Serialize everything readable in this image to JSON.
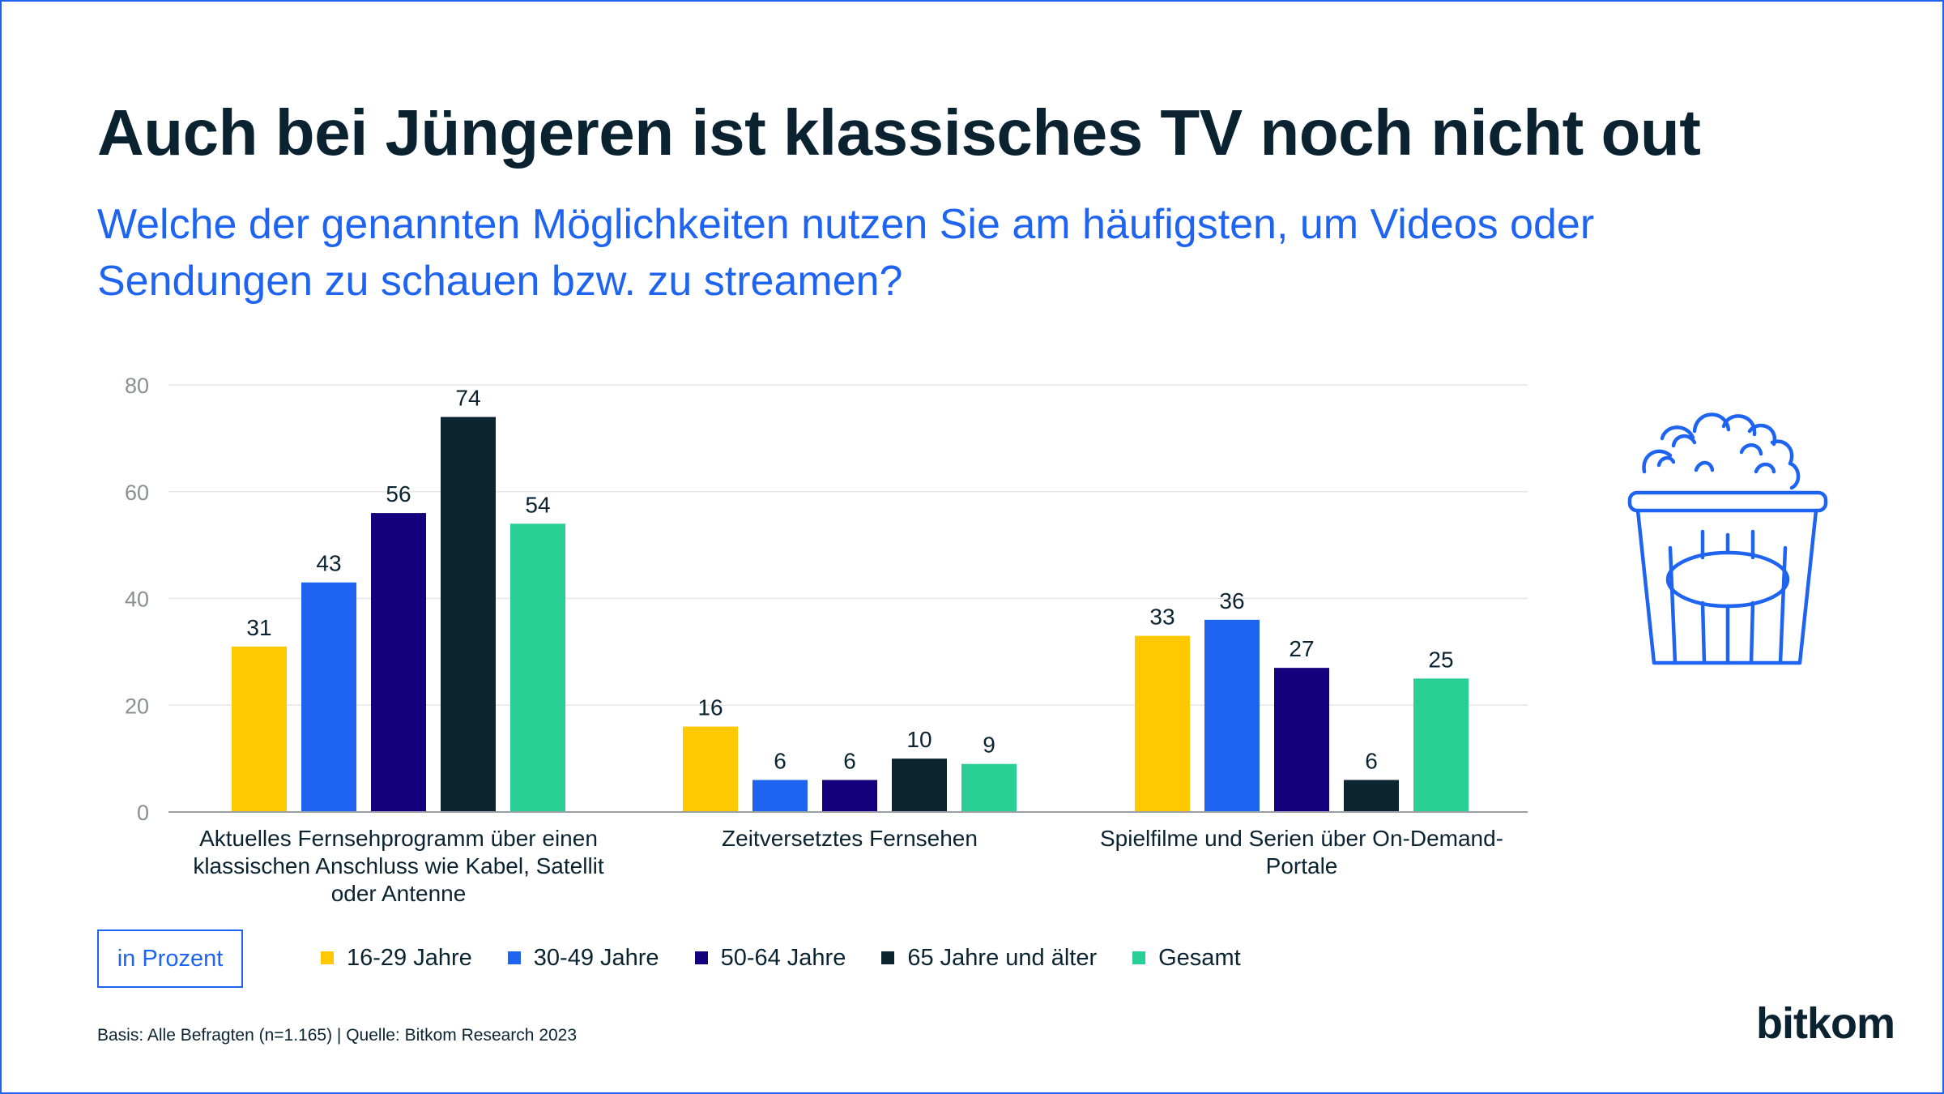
{
  "title": "Auch bei Jüngeren ist klassisches TV noch nicht out",
  "subtitle": "Welche der genannten Möglichkeiten nutzen Sie am häufigsten, um Videos oder Sendungen zu schauen bzw. zu streamen?",
  "unit_label": "in Prozent",
  "source": "Basis: Alle Befragten (n=1.165) | Quelle: Bitkom Research 2023",
  "logo_text": "bitkom",
  "icon": "popcorn-icon",
  "colors": {
    "accent": "#1e64f0",
    "text_dark": "#0b2330",
    "axis_text": "#8a8f94",
    "grid": "#e6e6e6",
    "series": [
      "#ffc800",
      "#1e64f0",
      "#14007d",
      "#0b2630",
      "#2acf96"
    ]
  },
  "chart_data": {
    "type": "bar",
    "categories": [
      [
        "Aktuelles Fernsehprogramm über einen",
        "klassischen Anschluss wie Kabel, Satellit",
        "oder Antenne"
      ],
      [
        "Zeitversetztes Fernsehen"
      ],
      [
        "Spielfilme und Serien über On-Demand-",
        "Portale"
      ]
    ],
    "series": [
      {
        "name": "16-29 Jahre",
        "values": [
          31,
          16,
          33
        ]
      },
      {
        "name": "30-49 Jahre",
        "values": [
          43,
          6,
          36
        ]
      },
      {
        "name": "50-64 Jahre",
        "values": [
          56,
          6,
          27
        ]
      },
      {
        "name": "65 Jahre und älter",
        "values": [
          74,
          10,
          6
        ]
      },
      {
        "name": "Gesamt",
        "values": [
          54,
          9,
          25
        ]
      }
    ],
    "ylim": [
      0,
      80
    ],
    "yticks": [
      0,
      20,
      40,
      60,
      80
    ],
    "grid": true,
    "legend_position": "bottom",
    "data_labels": true
  }
}
